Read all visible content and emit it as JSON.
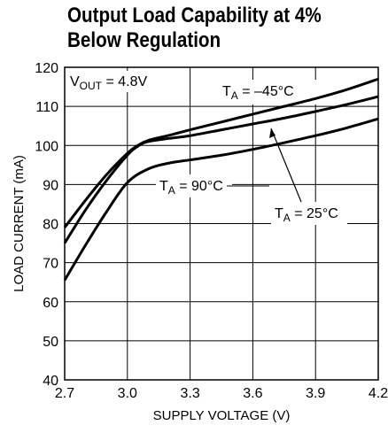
{
  "chart_data": {
    "type": "line",
    "title_line1": "Output Load Capability at 4%",
    "title_line2": "Below Regulation",
    "xlabel": "SUPPLY VOLTAGE (V)",
    "ylabel": "LOAD CURRENT (mA)",
    "xlim": [
      2.7,
      4.2
    ],
    "ylim": [
      40,
      120
    ],
    "x_ticks": [
      2.7,
      3.0,
      3.3,
      3.6,
      3.9,
      4.2
    ],
    "x_tick_labels": [
      "2.7",
      "3.0",
      "3.3",
      "3.6",
      "3.9",
      "4.2"
    ],
    "y_ticks": [
      40,
      50,
      60,
      70,
      80,
      90,
      100,
      110,
      120
    ],
    "y_tick_labels": [
      "40",
      "50",
      "60",
      "70",
      "80",
      "90",
      "100",
      "110",
      "120"
    ],
    "grid": true,
    "series": [
      {
        "name": "TA = –45°C",
        "label_main": "T",
        "label_sub": "A",
        "label_rest": " = –45°C",
        "x": [
          2.7,
          2.8,
          2.9,
          3.0,
          3.05,
          3.1,
          3.2,
          3.3,
          3.45,
          3.6,
          3.75,
          3.9,
          4.05,
          4.2
        ],
        "y": [
          79,
          86,
          92.5,
          98,
          100,
          101.3,
          102.6,
          104,
          106,
          108,
          110,
          112,
          114.3,
          117
        ]
      },
      {
        "name": "TA = 25°C",
        "label_main": "T",
        "label_sub": "A",
        "label_rest": " = 25°C",
        "x": [
          2.7,
          2.8,
          2.9,
          3.0,
          3.05,
          3.1,
          3.2,
          3.3,
          3.45,
          3.6,
          3.75,
          3.9,
          4.05,
          4.2
        ],
        "y": [
          75,
          83.5,
          91,
          97.5,
          99.8,
          101,
          101.8,
          102.5,
          104,
          105.5,
          107,
          108.7,
          110.5,
          112.5
        ]
      },
      {
        "name": "TA = 90°C",
        "label_main": "T",
        "label_sub": "A",
        "label_rest": " = 90°C",
        "x": [
          2.7,
          2.8,
          2.9,
          3.0,
          3.1,
          3.2,
          3.3,
          3.45,
          3.6,
          3.75,
          3.9,
          4.05,
          4.2
        ],
        "y": [
          65.5,
          74.5,
          83,
          90.5,
          94,
          95.5,
          96.3,
          97.5,
          99,
          100.7,
          102.5,
          104.5,
          106.8
        ]
      }
    ],
    "annotation": {
      "main": "V",
      "sub": "OUT",
      "rest": " = 4.8V"
    }
  }
}
